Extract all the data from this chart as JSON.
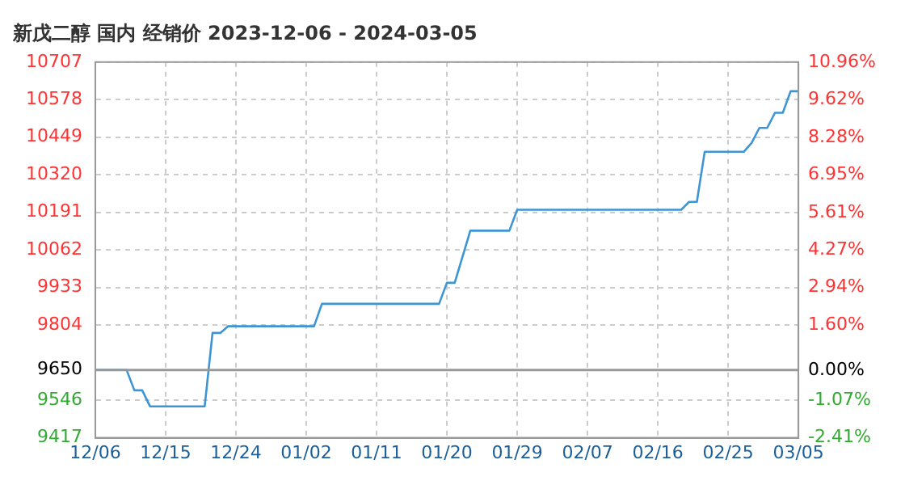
{
  "chart_data": {
    "type": "line",
    "title": "新戊二醇 国内 经销价 2023-12-06 - 2024-03-05",
    "x": [
      "2023-12-06",
      "2023-12-10",
      "2023-12-11",
      "2023-12-12",
      "2023-12-13",
      "2023-12-20",
      "2023-12-21",
      "2023-12-22",
      "2023-12-23",
      "2024-01-03",
      "2024-01-04",
      "2024-01-19",
      "2024-01-20",
      "2024-01-21",
      "2024-01-23",
      "2024-01-28",
      "2024-01-29",
      "2024-02-19",
      "2024-02-20",
      "2024-02-21",
      "2024-02-22",
      "2024-02-27",
      "2024-02-28",
      "2024-02-29",
      "2024-03-01",
      "2024-03-02",
      "2024-03-03",
      "2024-03-04",
      "2024-03-05"
    ],
    "series": [
      {
        "color": "#3d95d3",
        "values": [
          9650,
          9650,
          9580,
          9580,
          9525,
          9525,
          9777,
          9777,
          9800,
          9800,
          9877,
          9877,
          9949,
          9949,
          10128,
          10128,
          10200,
          10200,
          10227,
          10227,
          10399,
          10399,
          10429,
          10481,
          10481,
          10533,
          10533,
          10607,
          10607
        ]
      }
    ],
    "xlim": [
      "2023-12-06",
      "2024-03-05"
    ],
    "xticks": [
      {
        "value": "2023-12-06",
        "label": "12/06"
      },
      {
        "value": "2023-12-15",
        "label": "12/15"
      },
      {
        "value": "2023-12-24",
        "label": "12/24"
      },
      {
        "value": "2024-01-02",
        "label": "01/02"
      },
      {
        "value": "2024-01-11",
        "label": "01/11"
      },
      {
        "value": "2024-01-20",
        "label": "01/20"
      },
      {
        "value": "2024-01-29",
        "label": "01/29"
      },
      {
        "value": "2024-02-07",
        "label": "02/07"
      },
      {
        "value": "2024-02-16",
        "label": "02/16"
      },
      {
        "value": "2024-02-25",
        "label": "02/25"
      },
      {
        "value": "2024-03-05",
        "label": "03/05"
      }
    ],
    "ylim": [
      9417,
      10707
    ],
    "yticks": [
      9417,
      9546,
      9650,
      9804,
      9933,
      10062,
      10191,
      10320,
      10449,
      10578,
      10707
    ],
    "y2lim": [
      -2.41,
      10.96
    ],
    "y2ticks": [
      {
        "value": -2.41,
        "label": "-2.41%"
      },
      {
        "value": -1.07,
        "label": "-1.07%"
      },
      {
        "value": 0,
        "label": "0.00%"
      },
      {
        "value": 1.6,
        "label": "1.60%"
      },
      {
        "value": 2.94,
        "label": "2.94%"
      },
      {
        "value": 4.27,
        "label": "4.27%"
      },
      {
        "value": 5.61,
        "label": "5.61%"
      },
      {
        "value": 6.95,
        "label": "6.95%"
      },
      {
        "value": 8.28,
        "label": "8.28%"
      },
      {
        "value": 9.62,
        "label": "9.62%"
      },
      {
        "value": 10.96,
        "label": "10.96%"
      }
    ],
    "ref_lines": [
      {
        "axis": "y",
        "value": 9650,
        "color": "#999999"
      }
    ],
    "grid": true,
    "marker": "none",
    "line_style": "solid",
    "legend": false
  }
}
